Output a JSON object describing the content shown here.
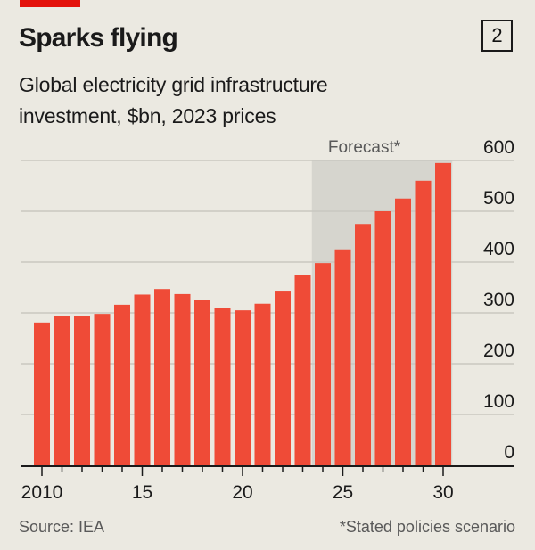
{
  "header": {
    "title": "Sparks flying",
    "chart_number": "2",
    "subtitle_line1": "Global electricity grid infrastructure",
    "subtitle_line2": "investment, $bn, 2023 prices"
  },
  "footer": {
    "source": "Source: IEA",
    "note": "*Stated policies scenario"
  },
  "colors": {
    "bar": "#ef4b37",
    "forecast_shade": "#d6d5ce",
    "background": "#ebe9e1",
    "brand_tag": "#e3120b"
  },
  "chart_data": {
    "type": "bar",
    "title": "Sparks flying",
    "subtitle": "Global electricity grid infrastructure investment, $bn, 2023 prices",
    "xlabel": "",
    "ylabel": "$bn, 2023 prices",
    "ylim": [
      0,
      600
    ],
    "yticks": [
      0,
      100,
      200,
      300,
      400,
      500,
      600
    ],
    "ytick_labels": [
      "0",
      "100",
      "200",
      "300",
      "400",
      "500",
      "600"
    ],
    "y_axis_side": "right",
    "grid": true,
    "categories": [
      2010,
      2011,
      2012,
      2013,
      2014,
      2015,
      2016,
      2017,
      2018,
      2019,
      2020,
      2021,
      2022,
      2023,
      2024,
      2025,
      2026,
      2027,
      2028,
      2029,
      2030
    ],
    "xtick_labels": [
      {
        "year": 2010,
        "label": "2010"
      },
      {
        "year": 2015,
        "label": "15"
      },
      {
        "year": 2020,
        "label": "20"
      },
      {
        "year": 2025,
        "label": "25"
      },
      {
        "year": 2030,
        "label": "30"
      }
    ],
    "series": [
      {
        "name": "Grid infrastructure investment",
        "values": [
          281,
          293,
          294,
          298,
          316,
          336,
          347,
          337,
          326,
          309,
          305,
          318,
          342,
          374,
          398,
          425,
          475,
          500,
          525,
          560,
          595
        ]
      }
    ],
    "forecast": {
      "label": "Forecast*",
      "start_year": 2024,
      "end_year": 2030
    }
  }
}
